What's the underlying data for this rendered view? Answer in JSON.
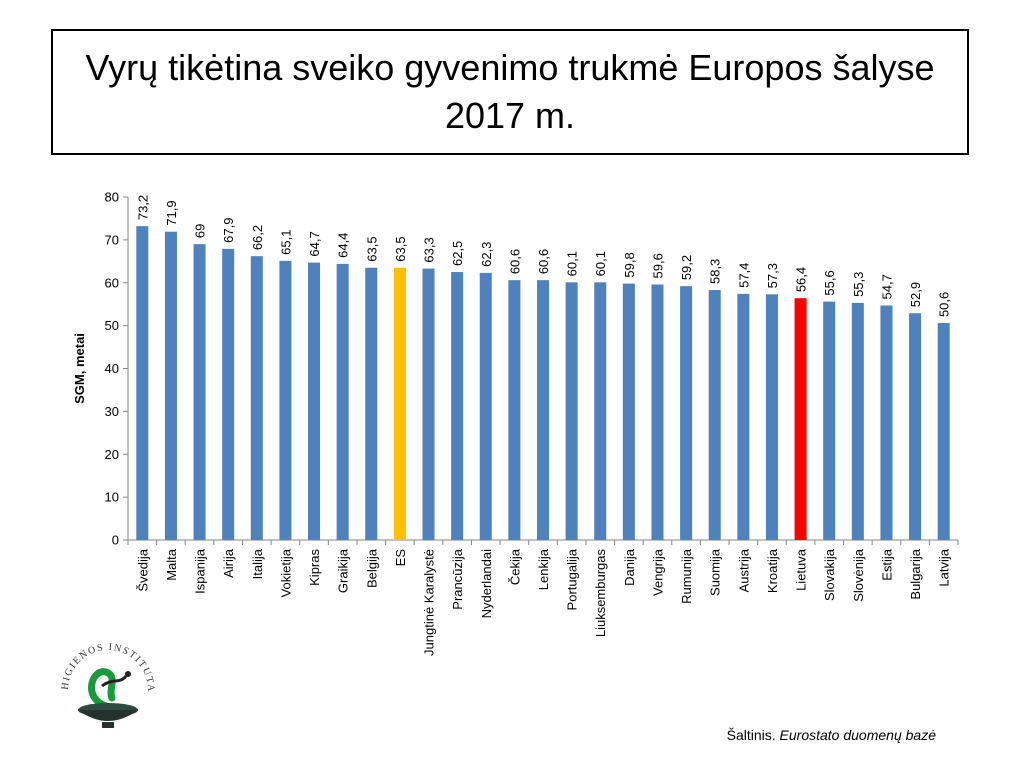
{
  "title": "Vyrų tikėtina sveiko gyvenimo trukmė  Europos šalyse 2017 m.",
  "source": {
    "prefix": "Šaltinis.",
    "name": "Eurostato duomenų bazė"
  },
  "logo": {
    "text": "HIGIENOS INSTITUTAS"
  },
  "colors": {
    "default": "#4F81BD",
    "EU": "#FFC000",
    "Lithuania": "#FF0000"
  },
  "chart_data": {
    "type": "bar",
    "ylabel": "SGM, metai",
    "xlabel": "",
    "ylim": [
      0,
      80
    ],
    "yticks": [
      0,
      10,
      20,
      30,
      40,
      50,
      60,
      70,
      80
    ],
    "grid": false,
    "categories": [
      "Švedija",
      "Malta",
      "Ispanija",
      "Airija",
      "Italija",
      "Vokietija",
      "Kipras",
      "Graikija",
      "Belgija",
      "ES",
      "Jungtinė Karalystė",
      "Prancūzija",
      "Nyderlandai",
      "Čekija",
      "Lenkija",
      "Portugalija",
      "Liuksemburgas",
      "Danija",
      "Vengrija",
      "Rumunija",
      "Suomija",
      "Austrija",
      "Kroatija",
      "Lietuva",
      "Slovakija",
      "Slovėnija",
      "Estija",
      "Bulgarija",
      "Latvija"
    ],
    "values": [
      73.2,
      71.9,
      69,
      67.9,
      66.2,
      65.1,
      64.7,
      64.4,
      63.5,
      63.5,
      63.3,
      62.5,
      62.3,
      60.6,
      60.6,
      60.1,
      60.1,
      59.8,
      59.6,
      59.2,
      58.3,
      57.4,
      57.3,
      56.4,
      55.6,
      55.3,
      54.7,
      52.9,
      50.6
    ],
    "value_labels": [
      "73,2",
      "71,9",
      "69",
      "67,9",
      "66,2",
      "65,1",
      "64,7",
      "64,4",
      "63,5",
      "63,5",
      "63,3",
      "62,5",
      "62,3",
      "60,6",
      "60,6",
      "60,1",
      "60,1",
      "59,8",
      "59,6",
      "59,2",
      "58,3",
      "57,4",
      "57,3",
      "56,4",
      "55,6",
      "55,3",
      "54,7",
      "52,9",
      "50,6"
    ],
    "highlight": {
      "ES": "EU",
      "Lietuva": "Lithuania"
    }
  }
}
